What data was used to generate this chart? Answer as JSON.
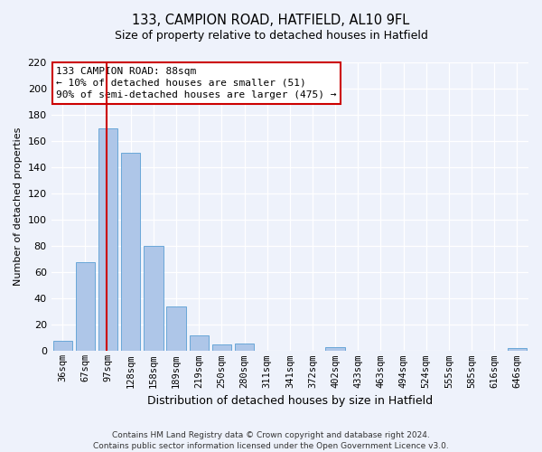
{
  "title": "133, CAMPION ROAD, HATFIELD, AL10 9FL",
  "subtitle": "Size of property relative to detached houses in Hatfield",
  "xlabel": "Distribution of detached houses by size in Hatfield",
  "ylabel": "Number of detached properties",
  "bar_labels": [
    "36sqm",
    "67sqm",
    "97sqm",
    "128sqm",
    "158sqm",
    "189sqm",
    "219sqm",
    "250sqm",
    "280sqm",
    "311sqm",
    "341sqm",
    "372sqm",
    "402sqm",
    "433sqm",
    "463sqm",
    "494sqm",
    "524sqm",
    "555sqm",
    "585sqm",
    "616sqm",
    "646sqm"
  ],
  "bar_heights": [
    8,
    68,
    170,
    151,
    80,
    34,
    12,
    5,
    6,
    0,
    0,
    0,
    3,
    0,
    0,
    0,
    0,
    0,
    0,
    0,
    2
  ],
  "bar_color": "#aec6e8",
  "bar_edge_color": "#5a9fd4",
  "ylim": [
    0,
    220
  ],
  "yticks": [
    0,
    20,
    40,
    60,
    80,
    100,
    120,
    140,
    160,
    180,
    200,
    220
  ],
  "vline_x": 1.95,
  "vline_color": "#cc0000",
  "annotation_title": "133 CAMPION ROAD: 88sqm",
  "annotation_line1": "← 10% of detached houses are smaller (51)",
  "annotation_line2": "90% of semi-detached houses are larger (475) →",
  "footer1": "Contains HM Land Registry data © Crown copyright and database right 2024.",
  "footer2": "Contains public sector information licensed under the Open Government Licence v3.0.",
  "bg_color": "#eef2fb",
  "grid_color": "#c8d4e8",
  "title_fontsize": 10.5,
  "subtitle_fontsize": 9,
  "ylabel_fontsize": 8,
  "xlabel_fontsize": 9,
  "tick_fontsize": 7.5,
  "annot_fontsize": 8
}
